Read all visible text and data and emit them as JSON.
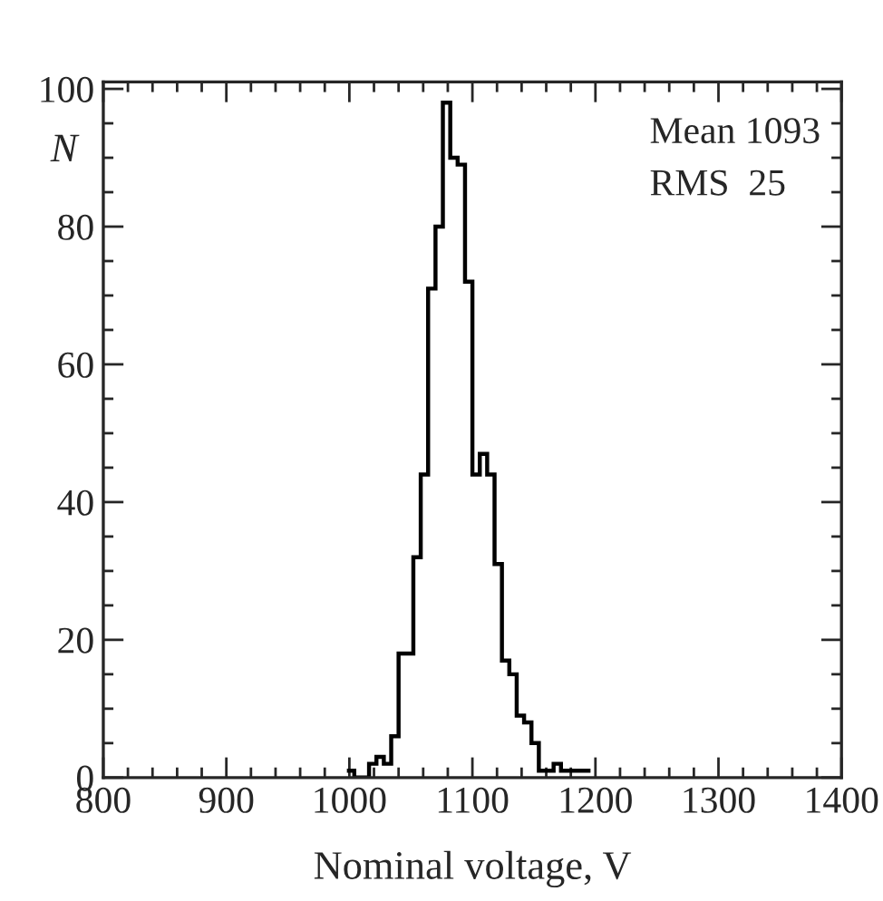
{
  "chart_data": {
    "type": "histogram",
    "xlabel": "Nominal voltage, V",
    "ylabel": "N",
    "bins": [
      998,
      1004,
      1010,
      1016,
      1022,
      1028,
      1034,
      1040,
      1046,
      1052,
      1058,
      1064,
      1070,
      1076,
      1082,
      1088,
      1094,
      1100,
      1106,
      1112,
      1118,
      1124,
      1130,
      1136,
      1142,
      1148,
      1154,
      1160,
      1166,
      1172,
      1178,
      1184,
      1190,
      1196
    ],
    "values": [
      1,
      0,
      0,
      2,
      3,
      2,
      6,
      18,
      18,
      32,
      44,
      71,
      80,
      98,
      90,
      89,
      72,
      44,
      47,
      44,
      31,
      17,
      15,
      9,
      8,
      5,
      1,
      1,
      2,
      1,
      1,
      1,
      1
    ],
    "color": "#000000",
    "xlim": [
      800,
      1400
    ],
    "xticks": [
      800,
      900,
      1000,
      1100,
      1200,
      1300,
      1400
    ],
    "ylim": [
      0,
      101
    ],
    "yticks": [
      0,
      20,
      40,
      60,
      80,
      100
    ],
    "grid": false,
    "annotations": [
      "Mean 1093",
      "RMS  25"
    ]
  }
}
